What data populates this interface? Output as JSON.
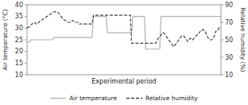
{
  "chart_data": {
    "type": "line",
    "xlabel": "Experimental period",
    "ylabel": "Air temperature (°C)",
    "y2label": "Relative humidity (%)",
    "ylim": [
      10,
      40
    ],
    "yticks": [
      10,
      15,
      20,
      25,
      30,
      35,
      40
    ],
    "y2lim": [
      10,
      90
    ],
    "y2ticks": [
      10,
      30,
      50,
      70,
      90
    ],
    "grid": false,
    "legend": "bottom",
    "tick_labels": "y",
    "series": [
      {
        "name": "Air temperature",
        "color": "#b0b0b0",
        "line_style": "solid",
        "values": [
          24,
          24,
          24,
          25,
          25,
          25,
          25,
          25,
          25,
          25,
          25,
          25,
          25,
          25,
          25,
          25,
          25,
          25,
          25,
          25,
          25,
          26,
          26,
          26,
          26,
          26,
          26,
          26,
          26,
          26,
          26,
          26,
          26,
          26,
          26,
          26,
          26,
          26,
          26,
          26,
          26,
          26,
          26,
          26,
          26,
          26,
          26,
          26,
          26,
          26,
          26,
          26,
          35,
          35,
          35,
          35,
          35,
          35,
          35,
          35,
          35,
          35,
          35,
          28,
          28,
          28,
          28,
          28,
          28,
          28,
          28,
          28,
          28,
          28,
          28,
          28,
          28,
          28,
          28,
          28,
          28,
          28,
          28,
          35,
          35,
          35,
          35,
          35,
          35,
          35,
          35,
          35,
          35,
          21,
          21,
          21,
          21,
          21,
          21,
          21,
          21,
          21,
          21,
          21,
          21,
          35,
          35,
          35,
          35,
          35,
          35,
          35,
          35,
          35,
          35,
          35,
          35,
          35,
          35,
          35,
          35,
          35,
          35,
          35,
          35,
          35,
          35,
          35,
          35,
          35,
          35,
          35,
          35,
          35,
          35,
          35,
          35,
          35,
          35,
          35,
          35,
          35,
          35,
          35,
          35,
          35,
          35,
          35,
          35,
          35,
          35,
          35,
          35
        ]
      },
      {
        "name": "Relative humidity",
        "color": "#404040",
        "line_style": "dashed",
        "axis": "y2",
        "values": [
          64,
          64,
          65,
          67,
          68,
          70,
          70,
          68,
          68,
          70,
          71,
          72,
          73,
          74,
          75,
          76,
          77,
          78,
          79,
          80,
          81,
          82,
          82,
          82,
          82,
          80,
          78,
          76,
          74,
          73,
          72,
          71,
          70,
          70,
          70,
          72,
          72,
          70,
          70,
          70,
          70,
          68,
          68,
          68,
          68,
          68,
          68,
          68,
          68,
          68,
          68,
          68,
          78,
          78,
          78,
          78,
          78,
          78,
          78,
          78,
          78,
          78,
          78,
          78,
          78,
          78,
          78,
          78,
          78,
          78,
          78,
          78,
          78,
          78,
          78,
          78,
          78,
          78,
          78,
          78,
          78,
          78,
          46,
          46,
          46,
          46,
          46,
          46,
          46,
          46,
          46,
          46,
          46,
          46,
          46,
          46,
          46,
          46,
          46,
          46,
          46,
          46,
          50,
          52,
          54,
          55,
          58,
          58,
          56,
          54,
          52,
          50,
          48,
          46,
          44,
          42,
          44,
          46,
          48,
          50,
          52,
          54,
          55,
          54,
          52,
          50,
          48,
          50,
          52,
          50,
          50,
          52,
          54,
          55,
          56,
          58,
          60,
          60,
          62,
          60,
          58,
          55,
          52,
          50,
          50,
          50,
          52,
          55,
          60,
          60,
          62,
          65
        ]
      }
    ]
  }
}
